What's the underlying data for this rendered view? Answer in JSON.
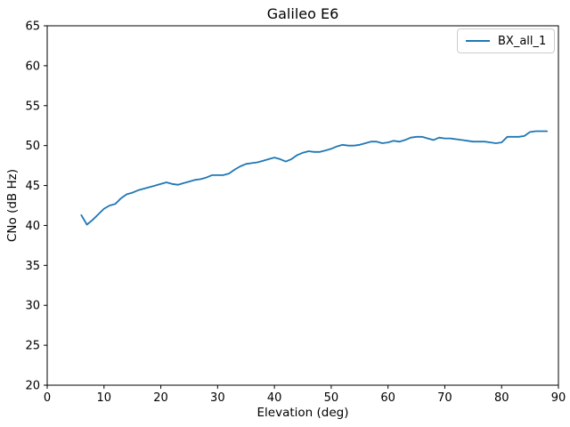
{
  "chart_data": {
    "type": "line",
    "title": "Galileo E6",
    "xlabel": "Elevation (deg)",
    "ylabel": "CNo (dB Hz)",
    "xlim": [
      0,
      90
    ],
    "ylim": [
      20,
      65
    ],
    "xticks": [
      0,
      10,
      20,
      30,
      40,
      50,
      60,
      70,
      80,
      90
    ],
    "yticks": [
      20,
      25,
      30,
      35,
      40,
      45,
      50,
      55,
      60,
      65
    ],
    "grid": false,
    "legend_position": "upper right",
    "series": [
      {
        "name": "BX_all_1",
        "color": "#1f77b4",
        "x": [
          6,
          7,
          8,
          9,
          10,
          11,
          12,
          13,
          14,
          15,
          16,
          17,
          18,
          19,
          20,
          21,
          22,
          23,
          24,
          25,
          26,
          27,
          28,
          29,
          30,
          31,
          32,
          33,
          34,
          35,
          36,
          37,
          38,
          39,
          40,
          41,
          42,
          43,
          44,
          45,
          46,
          47,
          48,
          49,
          50,
          51,
          52,
          53,
          54,
          55,
          56,
          57,
          58,
          59,
          60,
          61,
          62,
          63,
          64,
          65,
          66,
          67,
          68,
          69,
          70,
          71,
          72,
          73,
          74,
          75,
          76,
          77,
          78,
          79,
          80,
          81,
          82,
          83,
          84,
          85,
          86,
          87,
          88
        ],
        "y": [
          41.3,
          40.1,
          40.7,
          41.4,
          42.1,
          42.5,
          42.7,
          43.4,
          43.9,
          44.1,
          44.4,
          44.6,
          44.8,
          45.0,
          45.2,
          45.4,
          45.2,
          45.1,
          45.3,
          45.5,
          45.7,
          45.8,
          46.0,
          46.3,
          46.3,
          46.3,
          46.5,
          47.0,
          47.4,
          47.7,
          47.8,
          47.9,
          48.1,
          48.3,
          48.5,
          48.3,
          48.0,
          48.3,
          48.8,
          49.1,
          49.3,
          49.2,
          49.2,
          49.4,
          49.6,
          49.9,
          50.1,
          50.0,
          50.0,
          50.1,
          50.3,
          50.5,
          50.5,
          50.3,
          50.4,
          50.6,
          50.5,
          50.7,
          51.0,
          51.1,
          51.1,
          50.9,
          50.7,
          51.0,
          50.9,
          50.9,
          50.8,
          50.7,
          50.6,
          50.5,
          50.5,
          50.5,
          50.4,
          50.3,
          50.4,
          51.1,
          51.1,
          51.1,
          51.2,
          51.7,
          51.8,
          51.8,
          51.8
        ]
      }
    ]
  }
}
